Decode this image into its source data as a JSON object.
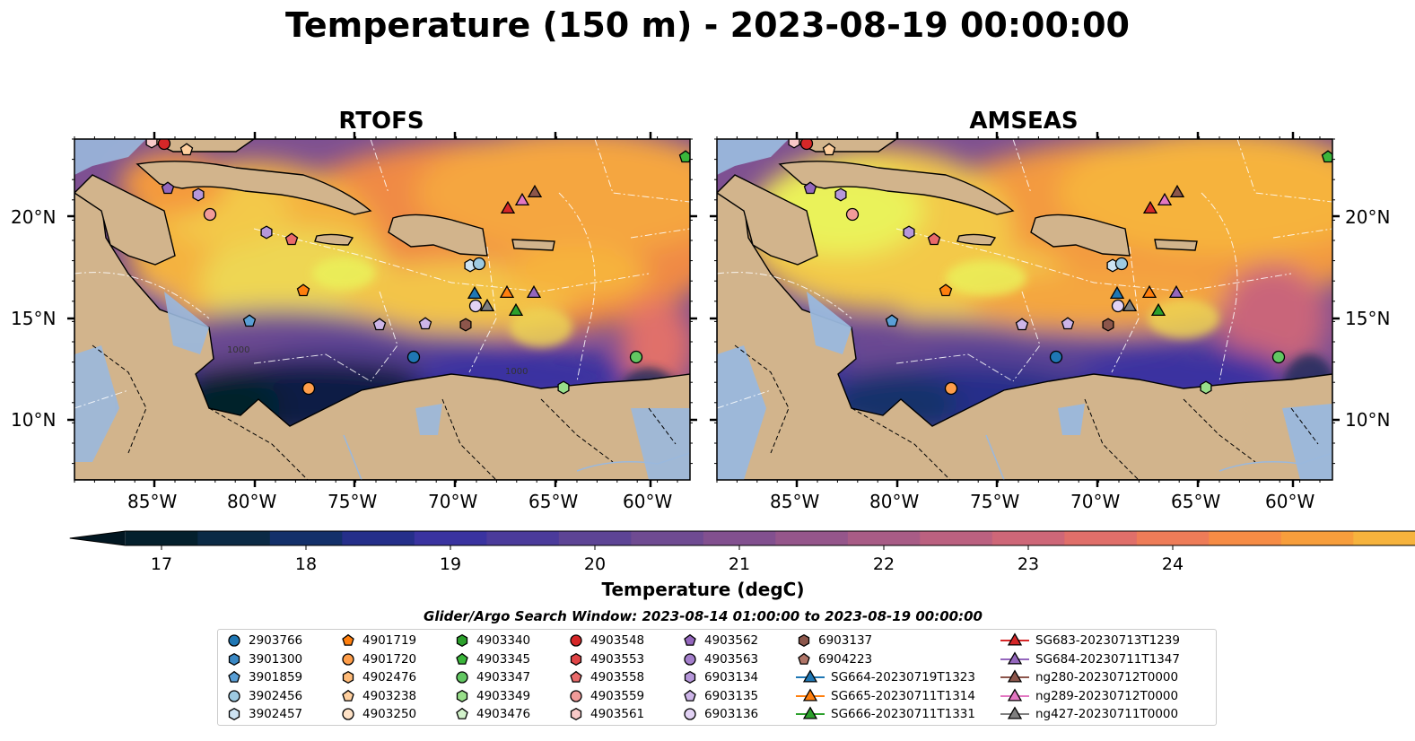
{
  "title": "Temperature (150 m) - 2023-08-19 00:00:00",
  "panels": [
    {
      "title": "RTOFS"
    },
    {
      "title": "AMSEAS"
    }
  ],
  "axes": {
    "lat_labels": [
      "20°N",
      "15°N",
      "10°N"
    ],
    "lon_labels": [
      "85°W",
      "80°W",
      "75°W",
      "70°W",
      "65°W",
      "60°W"
    ]
  },
  "colorbar": {
    "label": "Temperature (degC)",
    "ticks": [
      "17",
      "18",
      "19",
      "20",
      "21",
      "22",
      "23",
      "24"
    ],
    "vmin": 16.75,
    "vmax": 24.5,
    "step": 0.5,
    "extend": "both",
    "colors": [
      "#04202d",
      "#0b2a45",
      "#13306a",
      "#252f8a",
      "#3a33a0",
      "#4b3b9b",
      "#5d4495",
      "#6f4b92",
      "#82508f",
      "#95568b",
      "#a85c86",
      "#bb6180",
      "#ce6778",
      "#e06f6a",
      "#ee7c58",
      "#f68c45",
      "#f79e3c",
      "#f6b33d",
      "#f3c948",
      "#eedd52"
    ],
    "over_color": "#eaf25a",
    "under_color": "#021722"
  },
  "contour_labels": [
    "1000",
    "1000"
  ],
  "legend": {
    "title": "Glider/Argo Search Window: 2023-08-14 01:00:00 to 2023-08-19 00:00:00",
    "columns": [
      [
        {
          "label": "2903766",
          "marker": "circle",
          "color": "#1f77b4"
        },
        {
          "label": "3901300",
          "marker": "hexagon",
          "color": "#3a88c4"
        },
        {
          "label": "3901859",
          "marker": "pentagon",
          "color": "#5a9fd6"
        },
        {
          "label": "3902456",
          "marker": "circle",
          "color": "#9ecae1"
        },
        {
          "label": "3902457",
          "marker": "hexagon",
          "color": "#cde3f2"
        }
      ],
      [
        {
          "label": "4901719",
          "marker": "pentagon",
          "color": "#ff7f0e"
        },
        {
          "label": "4901720",
          "marker": "circle",
          "color": "#ff9e4a"
        },
        {
          "label": "4902476",
          "marker": "hexagon",
          "color": "#ffbb78"
        },
        {
          "label": "4903238",
          "marker": "pentagon",
          "color": "#ffcf9e"
        },
        {
          "label": "4903250",
          "marker": "circle",
          "color": "#ffe2c6"
        }
      ],
      [
        {
          "label": "4903340",
          "marker": "hexagon",
          "color": "#2ca02c"
        },
        {
          "label": "4903345",
          "marker": "pentagon",
          "color": "#3bb63b"
        },
        {
          "label": "4903347",
          "marker": "circle",
          "color": "#62c762"
        },
        {
          "label": "4903349",
          "marker": "hexagon",
          "color": "#98df8a"
        },
        {
          "label": "4903476",
          "marker": "pentagon",
          "color": "#d2f2cb"
        }
      ],
      [
        {
          "label": "4903548",
          "marker": "circle",
          "color": "#d62728"
        },
        {
          "label": "4903553",
          "marker": "hexagon",
          "color": "#e04446"
        },
        {
          "label": "4903558",
          "marker": "pentagon",
          "color": "#e96a6a"
        },
        {
          "label": "4903559",
          "marker": "circle",
          "color": "#f19b99"
        },
        {
          "label": "4903561",
          "marker": "hexagon",
          "color": "#f8c9c8"
        }
      ],
      [
        {
          "label": "4903562",
          "marker": "pentagon",
          "color": "#9467bd"
        },
        {
          "label": "4903563",
          "marker": "circle",
          "color": "#a47fcc"
        },
        {
          "label": "6903134",
          "marker": "hexagon",
          "color": "#b697da"
        },
        {
          "label": "6903135",
          "marker": "pentagon",
          "color": "#cdb5e8"
        },
        {
          "label": "6903136",
          "marker": "circle",
          "color": "#e2d2f4"
        }
      ],
      [
        {
          "label": "6903137",
          "marker": "hexagon",
          "color": "#8c564b"
        },
        {
          "label": "6904223",
          "marker": "pentagon",
          "color": "#b07568"
        },
        {
          "label": "SG664-20230719T1323",
          "marker": "triangle-line",
          "color": "#1f77b4"
        },
        {
          "label": "SG665-20230711T1314",
          "marker": "triangle-line",
          "color": "#ff7f0e"
        },
        {
          "label": "SG666-20230711T1331",
          "marker": "triangle-line",
          "color": "#2ca02c"
        }
      ],
      [
        {
          "label": "SG683-20230713T1239",
          "marker": "triangle-line",
          "color": "#d62728"
        },
        {
          "label": "SG684-20230711T1347",
          "marker": "triangle-line",
          "color": "#9467bd"
        },
        {
          "label": "ng280-20230712T0000",
          "marker": "triangle-line",
          "color": "#8c564b"
        },
        {
          "label": "ng289-20230712T0000",
          "marker": "triangle-line",
          "color": "#e377c2"
        },
        {
          "label": "ng427-20230711T0000",
          "marker": "triangle-line",
          "color": "#7f7f7f"
        }
      ]
    ]
  }
}
